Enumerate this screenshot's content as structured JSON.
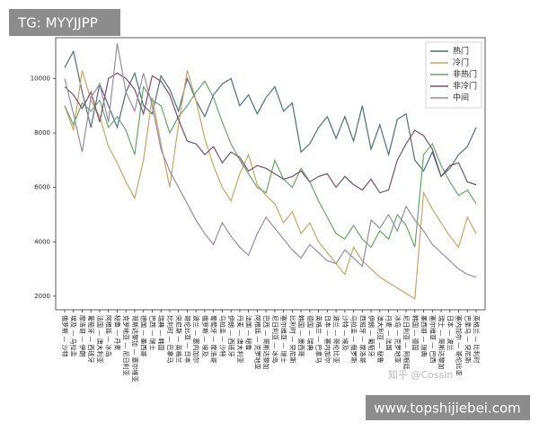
{
  "chart_data": {
    "type": "line",
    "categories": [
      "俄罗斯 — 沙特",
      "埃及 — 乌拉圭",
      "摩洛哥 — 伊朗",
      "葡萄牙 — 西班牙",
      "法国 — 澳大利亚",
      "阿根廷 — 冰岛",
      "秘鲁 — 丹麦",
      "克罗地亚 — 尼日利亚",
      "哥斯达黎加 — 塞尔维亚",
      "德国 — 墨西哥",
      "巴西 — 瑞士",
      "瑞典 — 韩国",
      "比利时 — 巴拿马",
      "突尼斯 — 英格兰",
      "哥伦比亚 — 日本",
      "波兰 — 塞内加尔",
      "俄罗斯 — 埃及",
      "葡萄牙 — 摩洛哥",
      "乌拉圭 — 沙特",
      "伊朗 — 西班牙",
      "丹麦 — 澳大利亚",
      "法国 — 秘鲁",
      "阿根廷 — 克罗地亚",
      "巴西 — 哥斯达黎加",
      "尼日利亚 — 冰岛",
      "塞尔维亚 — 瑞士",
      "比利时 — 突尼斯",
      "韩国 — 墨西哥",
      "德国 — 瑞典",
      "英格兰 — 巴拿马",
      "日本 — 塞内加尔",
      "波兰 — 哥伦比亚",
      "沙特 — 埃及",
      "乌拉圭 — 俄罗斯",
      "西班牙 — 摩洛哥",
      "伊朗 — 葡萄牙",
      "澳大利亚 — 秘鲁",
      "丹麦 — 法国",
      "冰岛 — 克罗地亚",
      "尼日利亚 — 阿根廷",
      "韩国 — 德国",
      "墨西哥 — 瑞典",
      "塞尔维亚 — 巴西",
      "瑞士 — 哥斯达黎加",
      "日本 — 波兰",
      "塞内加尔 — 哥伦比亚",
      "巴拿马 — 突尼斯",
      "英格兰 — 比利时"
    ],
    "series": [
      {
        "name": "热门",
        "color": "#4f6f7f",
        "values": [
          10400,
          11000,
          9500,
          8200,
          9800,
          9000,
          8200,
          9500,
          10200,
          9000,
          8700,
          10100,
          9600,
          8800,
          10000,
          9200,
          8600,
          9400,
          9800,
          10000,
          9000,
          9400,
          8700,
          9300,
          9700,
          8800,
          9100,
          7300,
          7600,
          8200,
          8600,
          7800,
          8600,
          7700,
          9000,
          7400,
          8300,
          7200,
          8500,
          8700,
          7000,
          6600,
          7300,
          6400,
          6700,
          7200,
          7500,
          8200
        ]
      },
      {
        "name": "冷门",
        "color": "#c8a46a",
        "values": [
          9000,
          8100,
          10300,
          9200,
          8600,
          7500,
          6900,
          6200,
          5600,
          7000,
          9300,
          7600,
          6000,
          8300,
          10300,
          9200,
          7800,
          6800,
          6000,
          5500,
          6500,
          7200,
          6100,
          5700,
          5400,
          4700,
          5100,
          4300,
          4700,
          4000,
          3600,
          3200,
          2800,
          3800,
          3300,
          3000,
          2700,
          2500,
          2300,
          2100,
          1900,
          5800,
          5200,
          4700,
          4200,
          3800,
          4900,
          4300
        ]
      },
      {
        "name": "非热门",
        "color": "#6aa56a",
        "values": [
          9000,
          8300,
          9100,
          8800,
          9200,
          8200,
          8600,
          8100,
          7200,
          9700,
          9200,
          9000,
          8000,
          8600,
          9000,
          9500,
          9900,
          9300,
          8400,
          7600,
          7000,
          6500,
          6000,
          5800,
          7000,
          6300,
          6000,
          6700,
          6200,
          5500,
          4900,
          4300,
          4100,
          4600,
          4100,
          3800,
          4400,
          4100,
          5000,
          4600,
          3800,
          7200,
          7600,
          6800,
          6200,
          5700,
          5900,
          5400
        ]
      },
      {
        "name": "非冷门",
        "color": "#7a4f6f",
        "values": [
          9700,
          9400,
          8900,
          9500,
          8400,
          10000,
          10200,
          10000,
          9600,
          8700,
          10100,
          9900,
          9400,
          8500,
          7700,
          7600,
          7200,
          7500,
          6900,
          7300,
          7100,
          6600,
          6800,
          6700,
          6500,
          6300,
          6400,
          6600,
          6200,
          6400,
          6500,
          6000,
          6400,
          6100,
          5900,
          6300,
          5800,
          5900,
          7000,
          7600,
          8100,
          7900,
          7400,
          6400,
          6800,
          6900,
          6200,
          6100
        ]
      },
      {
        "name": "中间",
        "color": "#9a8aa8",
        "values": [
          10000,
          8700,
          7300,
          9300,
          9800,
          8400,
          11300,
          9500,
          8800,
          10200,
          9000,
          7400,
          6600,
          6000,
          5400,
          4800,
          4300,
          3900,
          4700,
          4200,
          3800,
          3500,
          4300,
          4900,
          4500,
          4100,
          3700,
          3400,
          3900,
          3600,
          3300,
          3200,
          3700,
          3400,
          3100,
          4800,
          4500,
          5000,
          4400,
          5300,
          4800,
          4400,
          3900,
          3600,
          3300,
          3000,
          2800,
          2700
        ]
      }
    ],
    "ylim": [
      1500,
      11500
    ],
    "yticks": [
      2000,
      4000,
      6000,
      8000,
      10000
    ],
    "legend": "upper right"
  },
  "watermarks": {
    "top_left": "TG: MYYJJPP",
    "zhihu": "知乎 @Cossin",
    "bottom_right": "www.topshijiebei.com"
  }
}
